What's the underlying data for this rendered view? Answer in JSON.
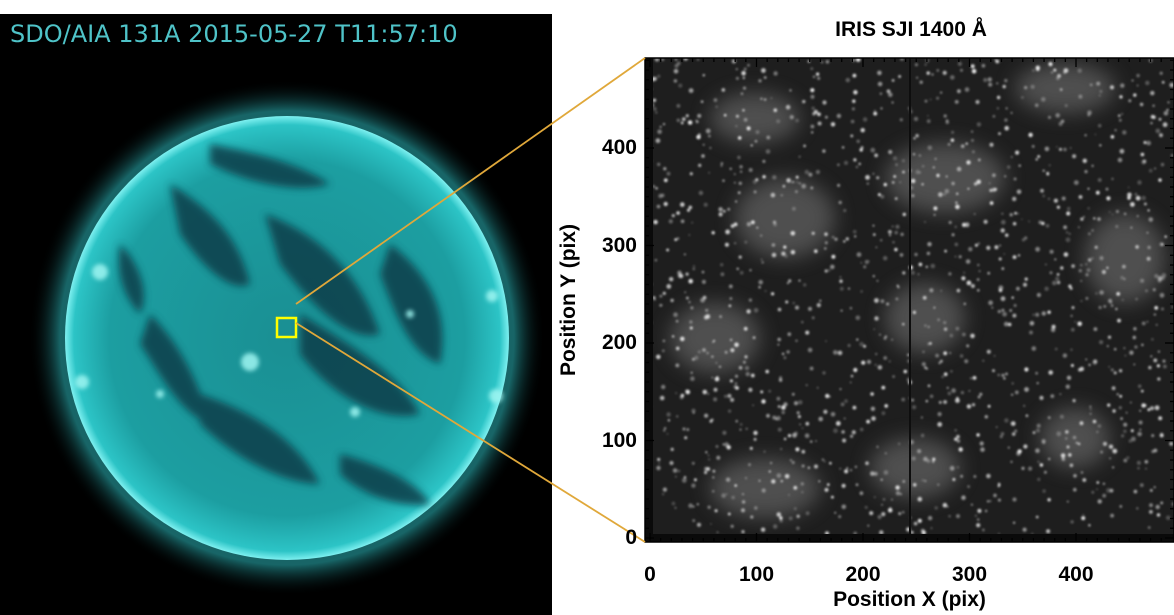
{
  "left_panel": {
    "title": "SDO/AIA 131A 2015-05-27 T11:57:10",
    "title_color": "#4fc3c8",
    "background": "#000000",
    "sun_color": "#1fa5a8",
    "limb_color": "#58e6e6",
    "box_color": "#ffff00"
  },
  "right_panel": {
    "title": "IRIS SJI 1400 Å",
    "xlabel": "Position X (pix)",
    "ylabel": "Position Y (pix)",
    "x_ticks": [
      "0",
      "100",
      "200",
      "300",
      "400"
    ],
    "y_ticks": [
      "0",
      "100",
      "200",
      "300",
      "400"
    ],
    "x_range": [
      0,
      480
    ],
    "y_range": [
      0,
      490
    ]
  },
  "connector_color": "#e0a83a"
}
